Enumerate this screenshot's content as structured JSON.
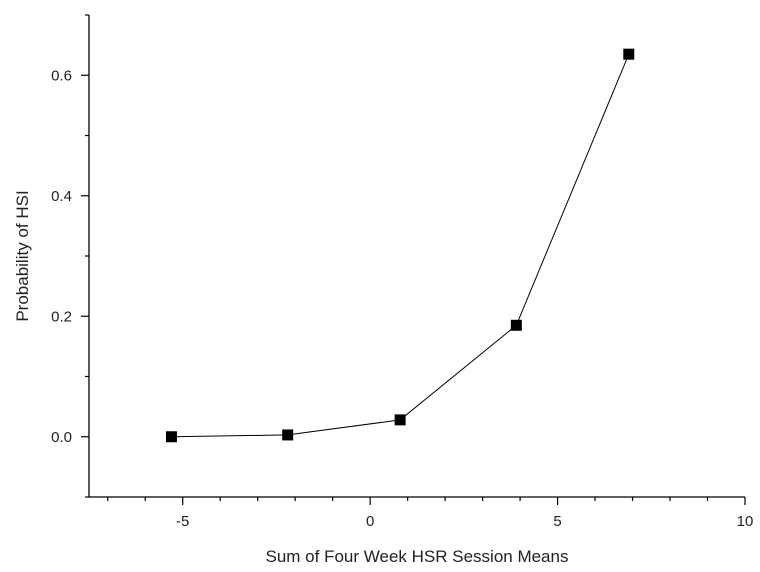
{
  "chart_data": {
    "type": "line",
    "title": "",
    "xlabel": "Sum of Four Week HSR Session Means",
    "ylabel": "Probability of HSI",
    "xlim": [
      -7.5,
      10
    ],
    "ylim": [
      -0.1,
      0.7
    ],
    "x_ticks": [
      -5,
      0,
      5,
      10
    ],
    "x_tick_labels": [
      "-5",
      "0",
      "5",
      "10"
    ],
    "y_ticks": [
      0.0,
      0.2,
      0.4,
      0.6
    ],
    "y_tick_labels": [
      "0.0",
      "0.2",
      "0.4",
      "0.6"
    ],
    "x_minor_step": 1,
    "y_minor_step": 0.1,
    "grid": false,
    "legend": "none",
    "series": [
      {
        "color": "#000000",
        "marker": "square",
        "x": [
          -5.3,
          -2.2,
          0.8,
          3.9,
          6.9
        ],
        "y": [
          0.0,
          0.003,
          0.028,
          0.185,
          0.635
        ]
      }
    ]
  }
}
